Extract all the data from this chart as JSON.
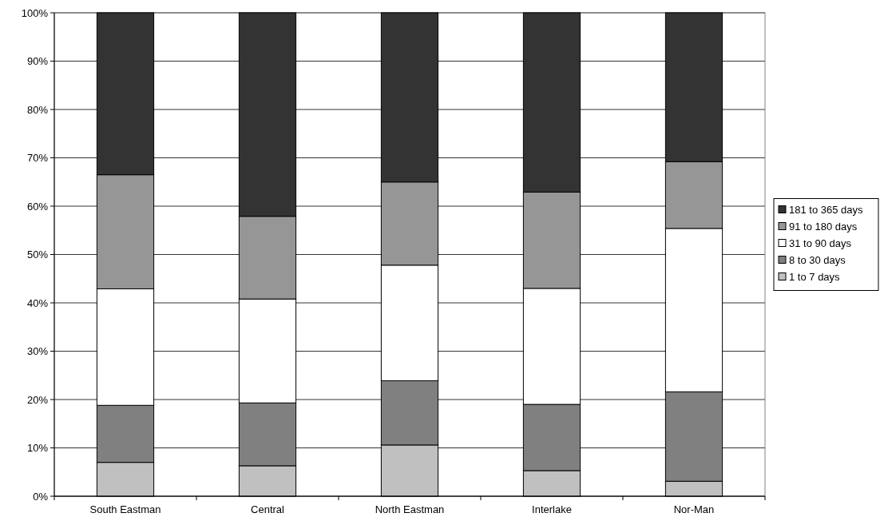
{
  "chart_data": {
    "type": "bar",
    "stacked": true,
    "categories": [
      "South Eastman",
      "Central",
      "North Eastman",
      "Interlake",
      "Nor-Man"
    ],
    "series": [
      {
        "name": "1 to 7 days",
        "color": "#c0c0c0",
        "values": [
          7,
          6.3,
          10.6,
          5.3,
          3.1
        ]
      },
      {
        "name": "8 to 30 days",
        "color": "#808080",
        "values": [
          11.8,
          13,
          13.3,
          13.7,
          18.5
        ]
      },
      {
        "name": "31 to 90 days",
        "color": "#ffffff",
        "values": [
          24.1,
          21.5,
          23.9,
          24,
          33.8
        ]
      },
      {
        "name": "91 to 180 days",
        "color": "#969696",
        "values": [
          23.6,
          17.1,
          17.2,
          19.9,
          13.8
        ]
      },
      {
        "name": "181 to 365 days",
        "color": "#333333",
        "values": [
          33.5,
          42.1,
          35,
          37.1,
          30.8
        ]
      }
    ],
    "ylim": [
      0,
      100
    ],
    "yticks": [
      {
        "value": 0,
        "label": "0%"
      },
      {
        "value": 10,
        "label": "10%"
      },
      {
        "value": 20,
        "label": "20%"
      },
      {
        "value": 30,
        "label": "30%"
      },
      {
        "value": 40,
        "label": "40%"
      },
      {
        "value": 50,
        "label": "50%"
      },
      {
        "value": 60,
        "label": "60%"
      },
      {
        "value": 70,
        "label": "70%"
      },
      {
        "value": 80,
        "label": "80%"
      },
      {
        "value": 90,
        "label": "90%"
      },
      {
        "value": 100,
        "label": "100%"
      }
    ],
    "grid": "y",
    "legend": "right"
  }
}
